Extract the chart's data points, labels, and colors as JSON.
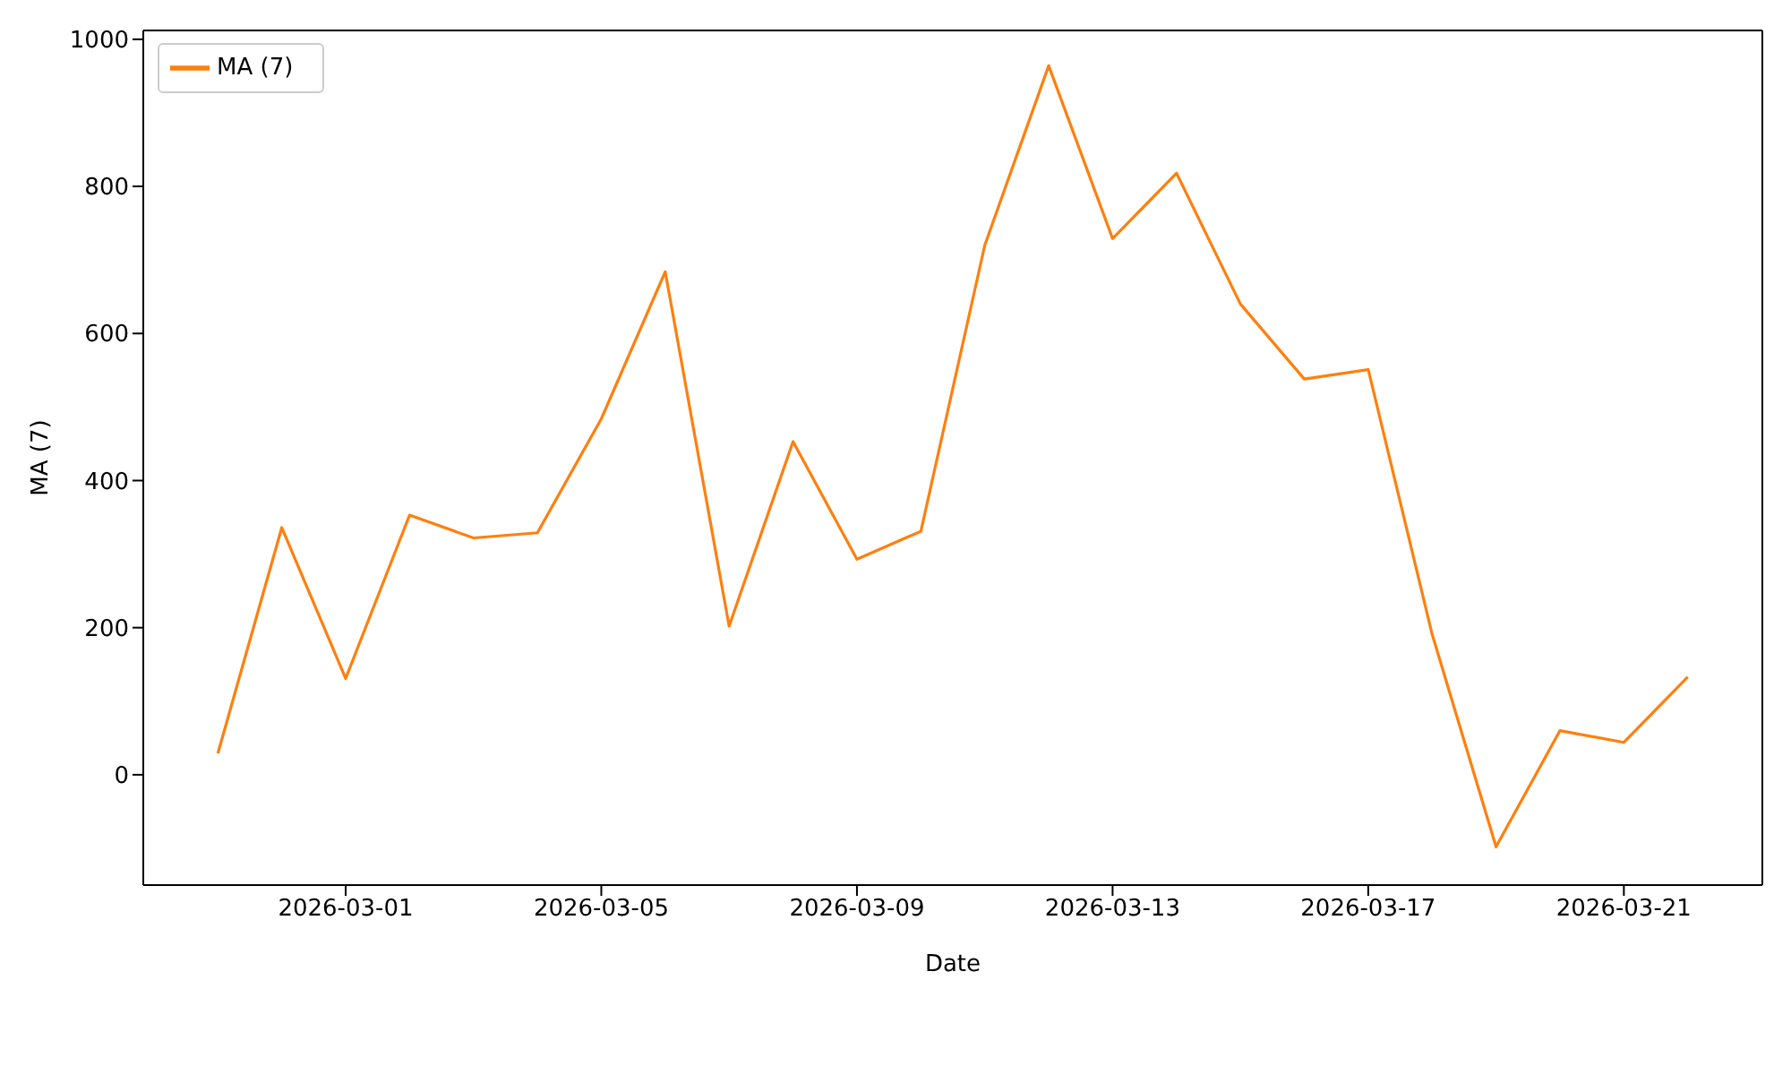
{
  "chart_data": {
    "type": "line",
    "xlabel": "Date",
    "ylabel": "MA (7)",
    "x": [
      "2026-02-27",
      "2026-02-28",
      "2026-03-01",
      "2026-03-02",
      "2026-03-03",
      "2026-03-04",
      "2026-03-05",
      "2026-03-06",
      "2026-03-07",
      "2026-03-08",
      "2026-03-09",
      "2026-03-10",
      "2026-03-11",
      "2026-03-12",
      "2026-03-13",
      "2026-03-14",
      "2026-03-15",
      "2026-03-16",
      "2026-03-17",
      "2026-03-18",
      "2026-03-19",
      "2026-03-20",
      "2026-03-21",
      "2026-03-22"
    ],
    "series": [
      {
        "name": "MA (7)",
        "color": "#ff7f0e",
        "values": [
          29,
          336,
          131,
          353,
          322,
          329,
          484,
          684,
          202,
          453,
          293,
          331,
          720,
          964,
          729,
          818,
          640,
          538,
          551,
          191,
          -98,
          60,
          44,
          133
        ]
      }
    ],
    "xlim": [
      "2026-02-25T20:00",
      "2026-03-23T04:00"
    ],
    "xticks": [
      "2026-03-01",
      "2026-03-05",
      "2026-03-09",
      "2026-03-13",
      "2026-03-17",
      "2026-03-21"
    ],
    "ylim": [
      -150,
      1012
    ],
    "yticks": [
      0,
      200,
      400,
      600,
      800,
      1000
    ],
    "grid": false,
    "legend": "top left",
    "marker": "none",
    "line_style": "solid"
  }
}
